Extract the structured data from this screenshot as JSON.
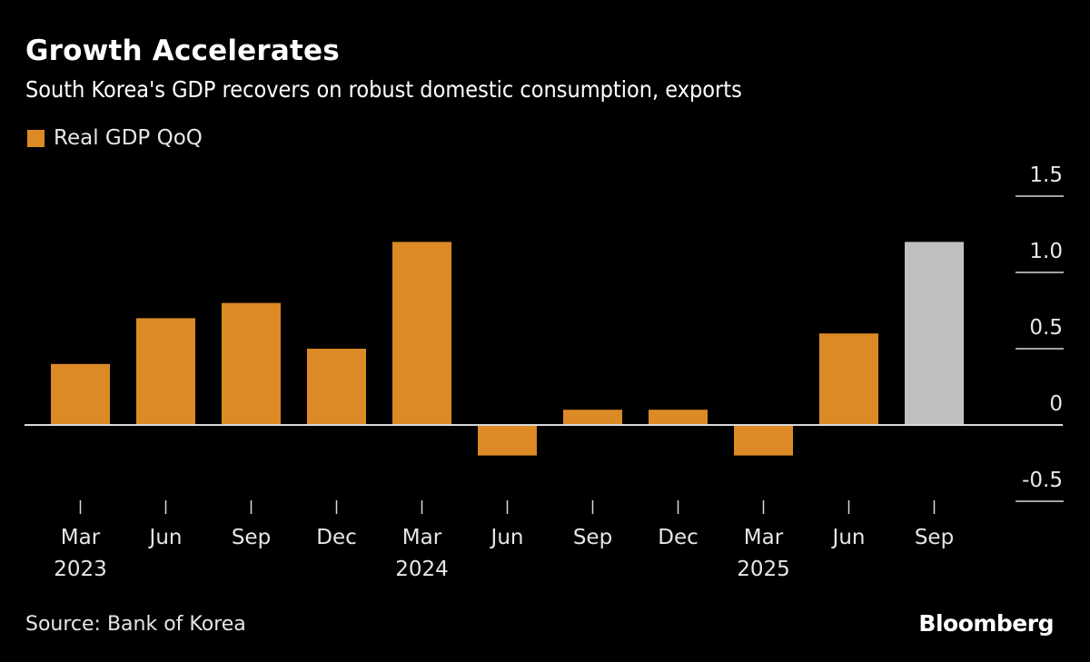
{
  "header": {
    "title": "Growth Accelerates",
    "subtitle": "South Korea's GDP recovers on robust domestic consumption, exports"
  },
  "legend": {
    "label": "Real GDP QoQ",
    "color": "#db8a26"
  },
  "footer": {
    "source": "Source: Bank of Korea",
    "brand": "Bloomberg"
  },
  "chart_data": {
    "type": "bar",
    "title": "Growth Accelerates",
    "subtitle": "South Korea's GDP recovers on robust domestic consumption, exports",
    "xlabel": "",
    "ylabel": "",
    "categories": [
      "Mar 2023",
      "Jun 2023",
      "Sep 2023",
      "Dec 2023",
      "Mar 2024",
      "Jun 2024",
      "Sep 2024",
      "Dec 2024",
      "Mar 2025",
      "Jun 2025",
      "Sep 2025"
    ],
    "tick_labels": [
      {
        "month": "Mar",
        "year": "2023"
      },
      {
        "month": "Jun",
        "year": ""
      },
      {
        "month": "Sep",
        "year": ""
      },
      {
        "month": "Dec",
        "year": ""
      },
      {
        "month": "Mar",
        "year": "2024"
      },
      {
        "month": "Jun",
        "year": ""
      },
      {
        "month": "Sep",
        "year": ""
      },
      {
        "month": "Dec",
        "year": ""
      },
      {
        "month": "Mar",
        "year": "2025"
      },
      {
        "month": "Jun",
        "year": ""
      },
      {
        "month": "Sep",
        "year": ""
      }
    ],
    "series": [
      {
        "name": "Real GDP QoQ",
        "values": [
          0.4,
          0.7,
          0.8,
          0.5,
          1.2,
          -0.2,
          0.1,
          0.1,
          -0.2,
          0.6,
          1.2
        ],
        "colors": [
          "#db8a26",
          "#db8a26",
          "#db8a26",
          "#db8a26",
          "#db8a26",
          "#db8a26",
          "#db8a26",
          "#db8a26",
          "#db8a26",
          "#db8a26",
          "#c0c0c0"
        ]
      }
    ],
    "ylim": [
      -0.5,
      1.5
    ],
    "yticks": [
      1.5,
      1.0,
      0.5,
      0,
      -0.5
    ],
    "ytick_labels": [
      "1.5",
      "1.0",
      "0.5",
      "0",
      "-0.5"
    ],
    "legend_position": "top-left",
    "grid": false,
    "y_axis_side": "right"
  }
}
